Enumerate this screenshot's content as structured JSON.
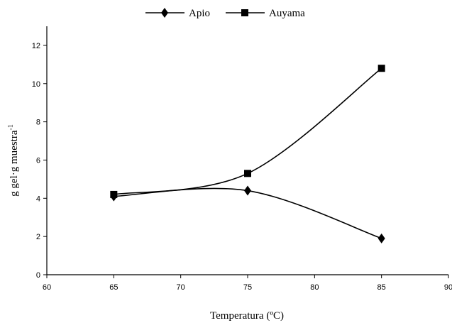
{
  "chart_data": {
    "type": "line",
    "xlabel": "Temperatura (ºC)",
    "ylabel": "g gel·g muestra",
    "ylabel_superscript": "-1",
    "xlim": [
      60,
      90
    ],
    "ylim": [
      0,
      13
    ],
    "xticks": [
      "60",
      "65",
      "70",
      "75",
      "80",
      "85",
      "90"
    ],
    "yticks": [
      "0",
      "2",
      "4",
      "6",
      "8",
      "10",
      "12"
    ],
    "grid": false,
    "legend_position": "top-center",
    "x": [
      65,
      75,
      85
    ],
    "series": [
      {
        "name": "Apio",
        "marker": "diamond",
        "values": [
          4.1,
          4.4,
          1.9
        ]
      },
      {
        "name": "Auyama",
        "marker": "square",
        "values": [
          4.2,
          5.3,
          10.8
        ]
      }
    ]
  }
}
